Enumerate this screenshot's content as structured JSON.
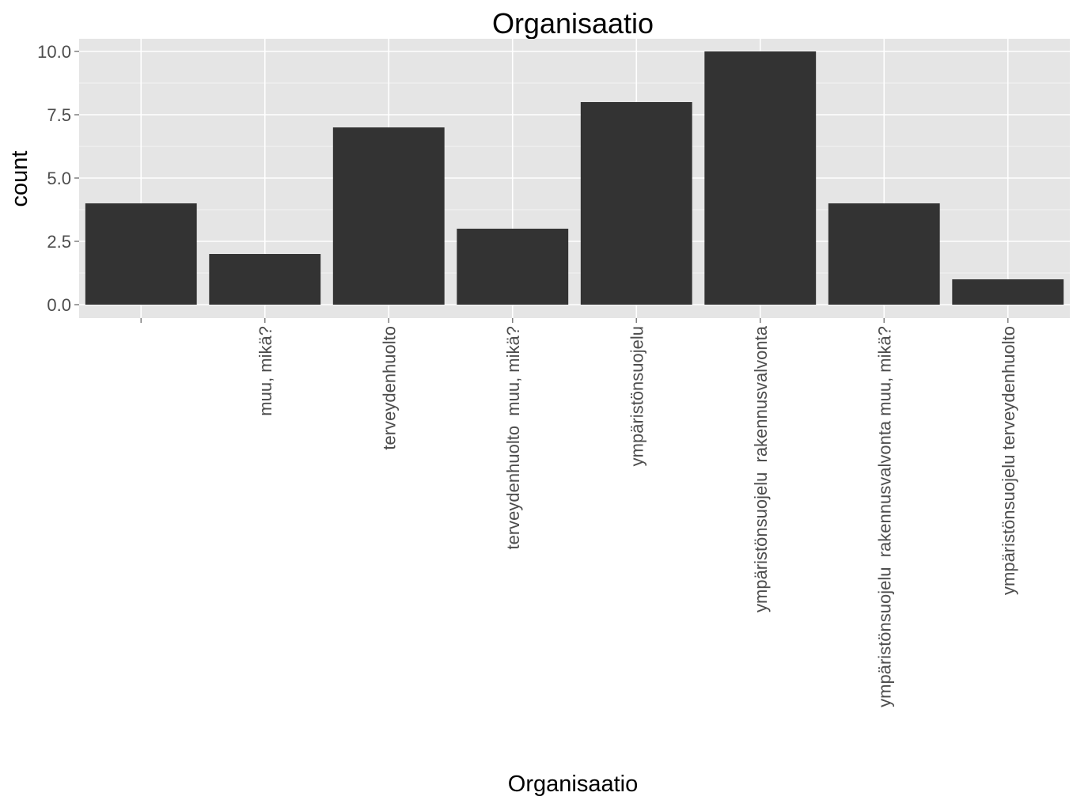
{
  "chart_data": {
    "type": "bar",
    "title": "Organisaatio",
    "xlabel": "Organisaatio",
    "ylabel": "count",
    "categories": [
      "",
      "muu, mikä?",
      "terveydenhuolto",
      "terveydenhuolto  muu, mikä?",
      "ympäristönsuojelu",
      "ympäristönsuojelu  rakennusvalvonta",
      "ympäristönsuojelu  rakennusvalvonta muu, mikä?",
      "ympäristönsuojelu terveydenhuolto"
    ],
    "values": [
      4,
      2,
      7,
      3,
      8,
      10,
      4,
      1
    ],
    "ylim": [
      0,
      10
    ],
    "yticks": [
      "0.0",
      "2.5",
      "5.0",
      "7.5",
      "10.0"
    ],
    "grid": true,
    "legend": "none"
  },
  "colors": {
    "bar_fill": "#333333",
    "panel_background": "#e5e5e5",
    "grid_major": "#ffffff",
    "grid_minor": "#f2f2f2",
    "tick_text": "#4d4d4d",
    "tick_mark": "#7f7f7f"
  }
}
